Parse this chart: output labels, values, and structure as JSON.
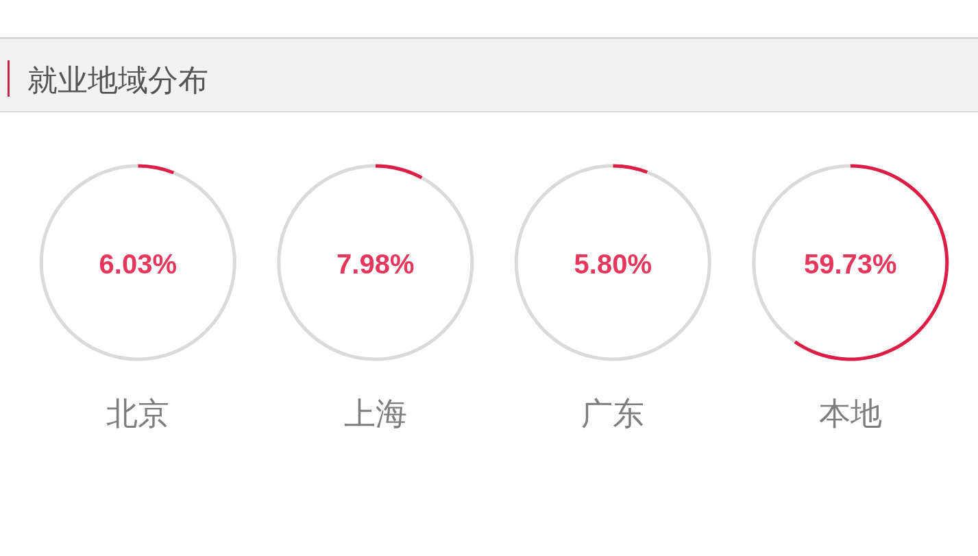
{
  "chart_data": [
    {
      "type": "other",
      "title": "就业地域分布"
    },
    {
      "type": "donut",
      "title": "北京",
      "categories": [
        null,
        null
      ],
      "values": [
        6.03,
        93.97
      ],
      "colors": [
        "#dc1e46",
        "#dadada"
      ],
      "annotations": [
        "6.03%"
      ]
    },
    {
      "type": "donut",
      "title": "上海",
      "categories": [
        null,
        null
      ],
      "values": [
        7.98,
        92.02
      ],
      "colors": [
        "#dc1e46",
        "#dadada"
      ],
      "annotations": [
        "7.98%"
      ]
    },
    {
      "type": "donut",
      "title": "广东",
      "categories": [
        null,
        null
      ],
      "values": [
        5.8,
        94.2
      ],
      "colors": [
        "#dc1e46",
        "#dadada"
      ],
      "annotations": [
        "5.80%"
      ]
    },
    {
      "type": "donut",
      "title": "本地",
      "categories": [
        null,
        null
      ],
      "values": [
        59.73,
        40.27
      ],
      "colors": [
        "#dc1e46",
        "#dadada"
      ],
      "annotations": [
        "59.73%"
      ]
    }
  ]
}
